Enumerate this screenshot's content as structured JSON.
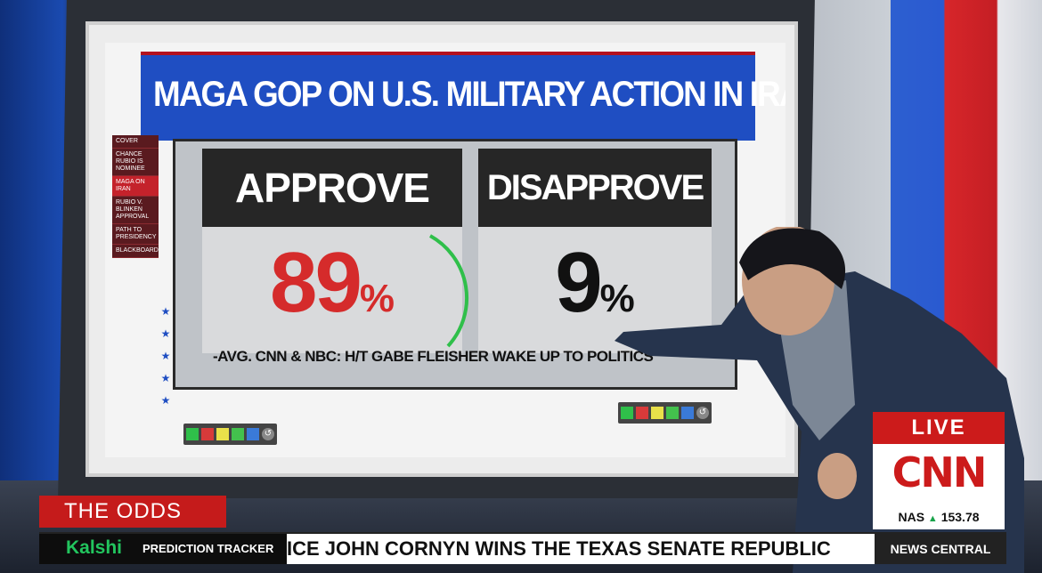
{
  "graphic": {
    "title": "MAGA GOP ON U.S. MILITARY ACTION IN IRAN",
    "side_nav": [
      {
        "label": "COVER",
        "active": false
      },
      {
        "label": "CHANCE RUBIO IS NOMINEE",
        "active": false
      },
      {
        "label": "MAGA ON IRAN",
        "active": true
      },
      {
        "label": "RUBIO V. BLINKEN APPROVAL",
        "active": false
      },
      {
        "label": "PATH TO PRESIDENCY",
        "active": false
      },
      {
        "label": "BLACKBOARD",
        "active": false
      }
    ],
    "approve": {
      "label": "APPROVE",
      "value": "89",
      "unit": "%"
    },
    "disapprove": {
      "label": "DISAPPROVE",
      "value": "9",
      "unit": "%"
    },
    "source": "-AVG. CNN & NBC: H/T GABE FLEISHER WAKE UP TO POLITICS",
    "tray_colors": [
      "#2fbf4a",
      "#d83a3a",
      "#e9e04a",
      "#43c14d",
      "#3a7ad8"
    ],
    "tray_tool_icon": "refresh-icon"
  },
  "broadcast": {
    "live_label": "LIVE",
    "network": "CNN",
    "stock_symbol": "NAS",
    "stock_value": "153.78",
    "segment_tag": "THE ODDS",
    "sponsor": "Kalshi",
    "sponsor_sub": "PREDICTION TRACKER",
    "crawl_text": "ICE JOHN CORNYN WINS THE TEXAS SENATE REPUBLIC",
    "program": "NEWS CENTRAL"
  },
  "colors": {
    "cnn_red": "#cc1b1b",
    "title_blue": "#1f4ec2",
    "approve_red": "#d52b2b",
    "kalshi_green": "#22c55e"
  }
}
